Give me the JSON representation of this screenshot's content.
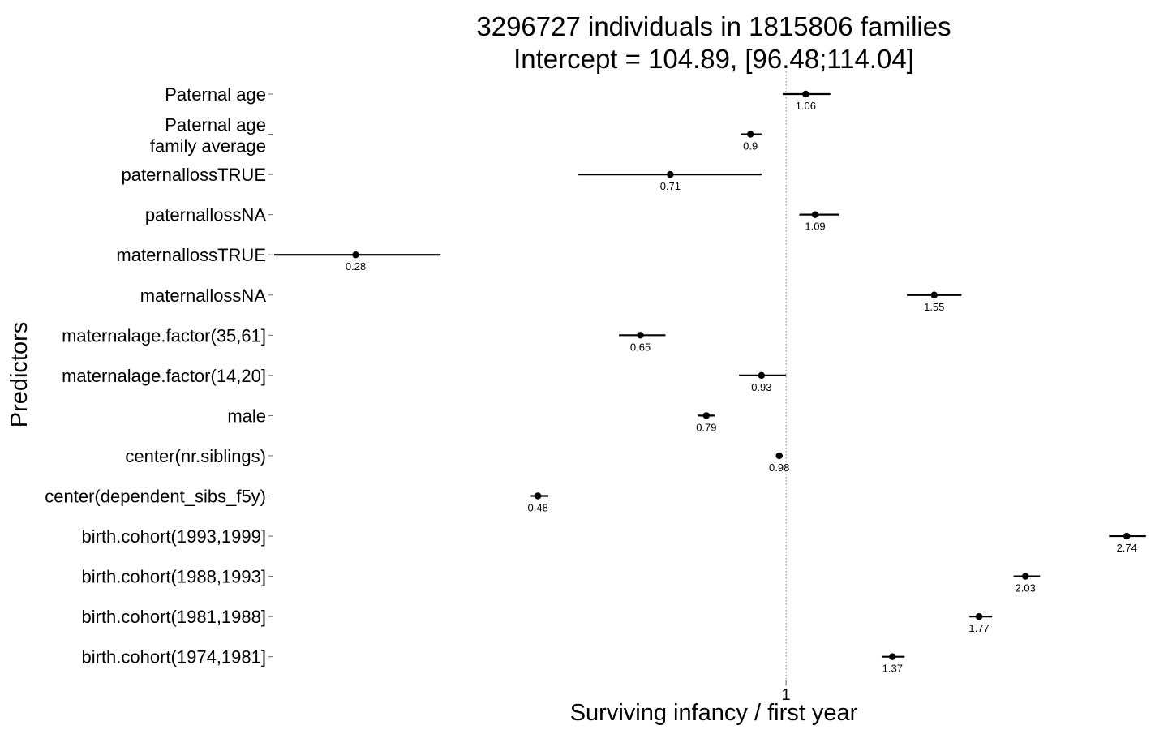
{
  "chart_data": {
    "type": "forest",
    "title": [
      "3296727 individuals in 1815806 families",
      "Intercept = 104.89, [96.48;114.04]"
    ],
    "xlabel": "Surviving infancy / first year",
    "ylabel": "Predictors",
    "xscale": "log",
    "xlim": [
      0.22,
      2.95
    ],
    "xticks": [
      1
    ],
    "xtick_labels": [
      "1"
    ],
    "reference_line": 1,
    "grid": false,
    "series": [
      {
        "label": [
          "Paternal age"
        ],
        "estimate": 1.06,
        "ci_low": 0.99,
        "ci_high": 1.14,
        "value_label": "1.06"
      },
      {
        "label": [
          "Paternal age",
          "family average"
        ],
        "estimate": 0.9,
        "ci_low": 0.875,
        "ci_high": 0.93,
        "value_label": "0.9"
      },
      {
        "label": [
          "paternallossTRUE"
        ],
        "estimate": 0.71,
        "ci_low": 0.54,
        "ci_high": 0.93,
        "value_label": "0.71"
      },
      {
        "label": [
          "paternallossNA"
        ],
        "estimate": 1.09,
        "ci_low": 1.04,
        "ci_high": 1.17,
        "value_label": "1.09"
      },
      {
        "label": [
          "maternallossTRUE"
        ],
        "estimate": 0.28,
        "ci_low": 0.22,
        "ci_high": 0.36,
        "value_label": "0.28"
      },
      {
        "label": [
          "maternallossNA"
        ],
        "estimate": 1.55,
        "ci_low": 1.43,
        "ci_high": 1.68,
        "value_label": "1.55"
      },
      {
        "label": [
          "maternalage.factor(35,61]"
        ],
        "estimate": 0.65,
        "ci_low": 0.61,
        "ci_high": 0.7,
        "value_label": "0.65"
      },
      {
        "label": [
          "maternalage.factor(14,20]"
        ],
        "estimate": 0.93,
        "ci_low": 0.87,
        "ci_high": 1.0,
        "value_label": "0.93"
      },
      {
        "label": [
          "male"
        ],
        "estimate": 0.79,
        "ci_low": 0.77,
        "ci_high": 0.81,
        "value_label": "0.79"
      },
      {
        "label": [
          "center(nr.siblings)"
        ],
        "estimate": 0.98,
        "ci_low": 0.975,
        "ci_high": 0.99,
        "value_label": "0.98"
      },
      {
        "label": [
          "center(dependent_sibs_f5y)"
        ],
        "estimate": 0.48,
        "ci_low": 0.47,
        "ci_high": 0.495,
        "value_label": "0.48"
      },
      {
        "label": [
          "birth.cohort(1993,1999]"
        ],
        "estimate": 2.74,
        "ci_low": 2.6,
        "ci_high": 2.9,
        "value_label": "2.74"
      },
      {
        "label": [
          "birth.cohort(1988,1993]"
        ],
        "estimate": 2.03,
        "ci_low": 1.96,
        "ci_high": 2.12,
        "value_label": "2.03"
      },
      {
        "label": [
          "birth.cohort(1981,1988]"
        ],
        "estimate": 1.77,
        "ci_low": 1.72,
        "ci_high": 1.84,
        "value_label": "1.77"
      },
      {
        "label": [
          "birth.cohort(1974,1981]"
        ],
        "estimate": 1.37,
        "ci_low": 1.33,
        "ci_high": 1.42,
        "value_label": "1.37"
      }
    ],
    "colors": {
      "point": "#000000",
      "reference_line": "#808080",
      "text": "#000000"
    }
  }
}
